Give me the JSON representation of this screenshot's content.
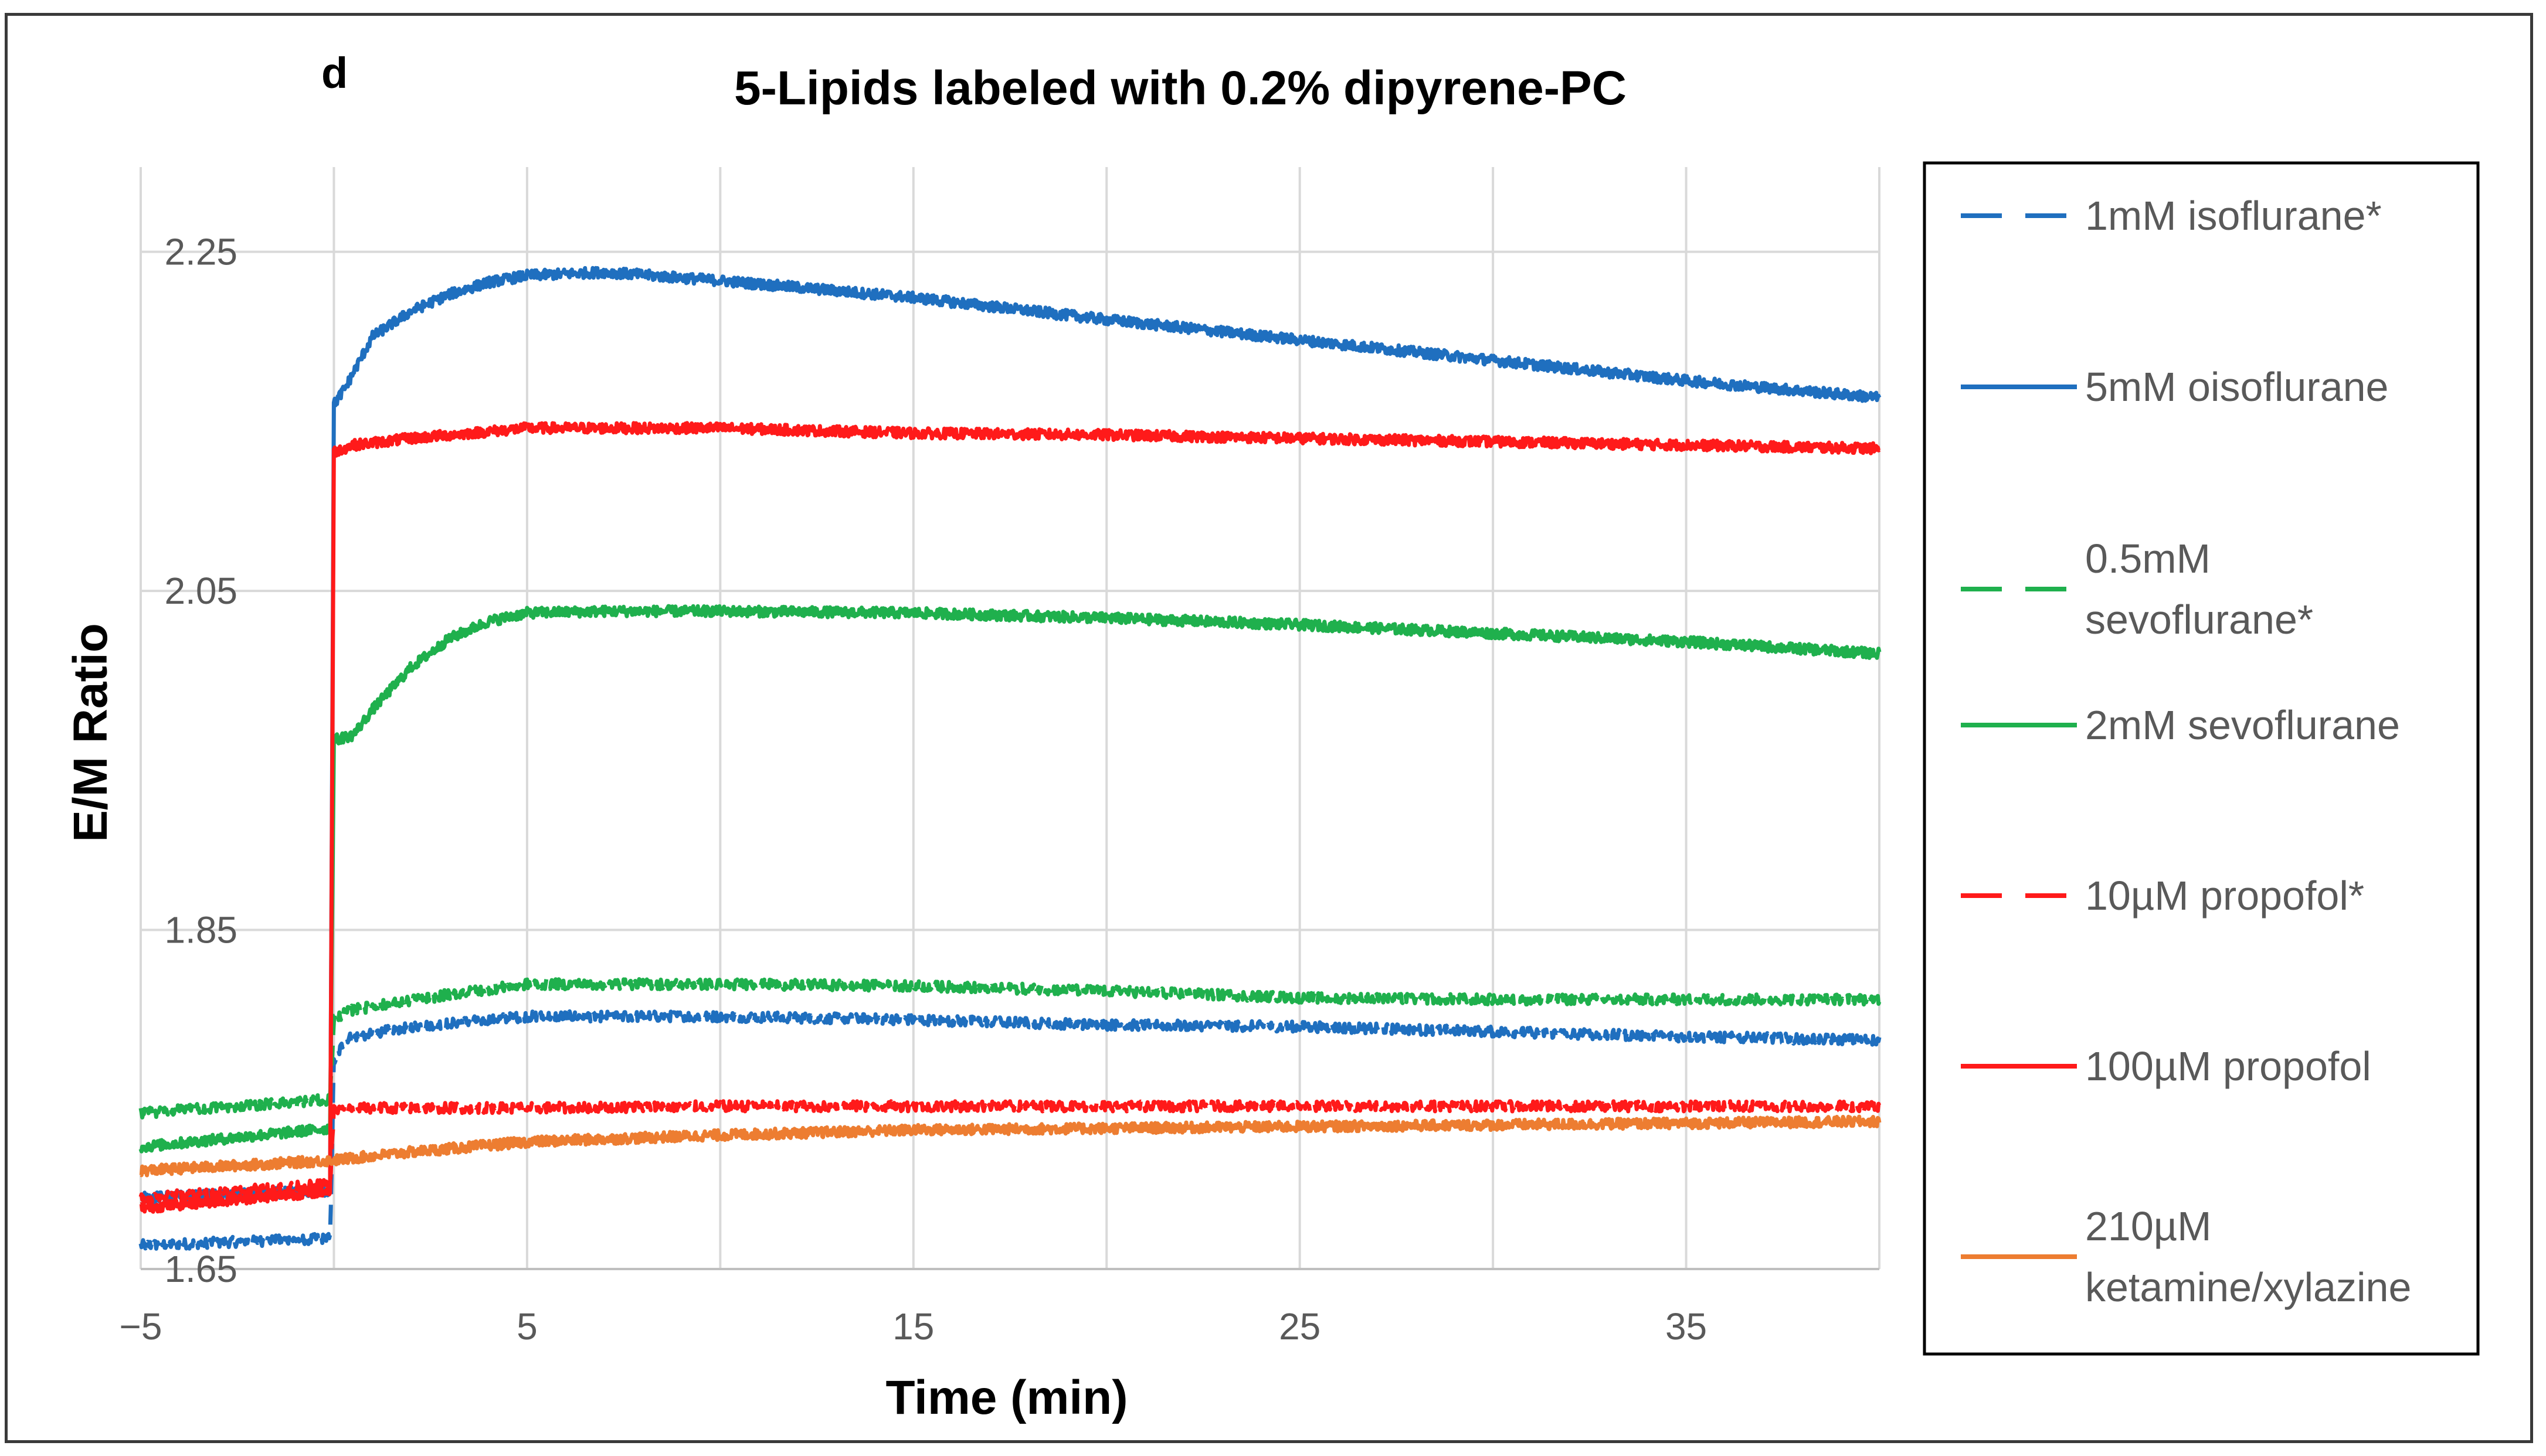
{
  "chart_data": {
    "type": "line",
    "panel": "d",
    "title": "5-Lipids labeled with 0.2% dipyrene-PC",
    "xlabel": "Time (min)",
    "ylabel": "E/M Ratio",
    "xlim": [
      -5,
      40
    ],
    "ylim": [
      1.65,
      2.3
    ],
    "xticks": [
      -5,
      5,
      15,
      25,
      35
    ],
    "yticks": [
      1.65,
      1.85,
      2.05,
      2.25
    ],
    "xtick_labels": [
      "−5",
      "5",
      "15",
      "25",
      "35"
    ],
    "ytick_labels": [
      "1.65",
      "1.85",
      "2.05",
      "2.25"
    ],
    "grid": true,
    "legend_position": "right",
    "series": [
      {
        "name": "1mM isoflurane*",
        "legend_lines": [
          "1mM isoflurane*"
        ],
        "color": "#1f6fbf",
        "dash": true,
        "x": [
          -5,
          -0.1,
          0,
          0.3,
          2,
          5,
          10,
          15,
          20,
          25,
          30,
          35,
          40
        ],
        "y": [
          1.664,
          1.668,
          1.772,
          1.786,
          1.793,
          1.799,
          1.799,
          1.797,
          1.794,
          1.793,
          1.79,
          1.787,
          1.785
        ]
      },
      {
        "name": "5mM oisoflurane",
        "legend_lines": [
          "5mM oisoflurane"
        ],
        "color": "#1f6fbf",
        "dash": false,
        "x": [
          -5,
          -0.1,
          0,
          0.3,
          1,
          2,
          3,
          4,
          5,
          7,
          10,
          15,
          20,
          25,
          30,
          35,
          40
        ],
        "y": [
          1.692,
          1.696,
          2.16,
          2.17,
          2.2,
          2.215,
          2.225,
          2.232,
          2.236,
          2.238,
          2.233,
          2.223,
          2.21,
          2.198,
          2.186,
          2.174,
          2.164
        ]
      },
      {
        "name": "0.5mM sevoflurane*",
        "legend_lines": [
          "0.5mM",
          "sevoflurane*"
        ],
        "color": "#1fb04d",
        "dash": true,
        "x": [
          -5,
          -0.1,
          0,
          0.5,
          3,
          5,
          10,
          15,
          20,
          25,
          30,
          35,
          40
        ],
        "y": [
          1.742,
          1.75,
          1.798,
          1.803,
          1.812,
          1.818,
          1.818,
          1.817,
          1.814,
          1.81,
          1.809,
          1.809,
          1.809
        ]
      },
      {
        "name": "2mM sevoflurane",
        "legend_lines": [
          "2mM sevoflurane"
        ],
        "color": "#1fb04d",
        "dash": false,
        "x": [
          -5,
          -0.1,
          0,
          0.5,
          1,
          2,
          3,
          4,
          5,
          7,
          10,
          15,
          20,
          25,
          30,
          35,
          40
        ],
        "y": [
          1.722,
          1.733,
          1.962,
          1.965,
          1.98,
          2.005,
          2.022,
          2.032,
          2.037,
          2.038,
          2.038,
          2.037,
          2.034,
          2.03,
          2.025,
          2.02,
          2.013
        ]
      },
      {
        "name": "10µM propofol*",
        "legend_lines": [
          "10µM propofol*"
        ],
        "color": "#ff1a1a",
        "dash": true,
        "x": [
          -5,
          -0.1,
          0,
          1,
          5,
          10,
          15,
          20,
          25,
          30,
          35,
          40
        ],
        "y": [
          1.692,
          1.7,
          1.744,
          1.745,
          1.745,
          1.746,
          1.746,
          1.746,
          1.746,
          1.746,
          1.746,
          1.746
        ]
      },
      {
        "name": "100µM propofol",
        "legend_lines": [
          "100µM propofol"
        ],
        "color": "#ff1a1a",
        "dash": false,
        "x": [
          -5,
          -0.1,
          0,
          0.5,
          2,
          5,
          10,
          15,
          20,
          25,
          30,
          35,
          40
        ],
        "y": [
          1.686,
          1.696,
          2.132,
          2.136,
          2.14,
          2.146,
          2.146,
          2.143,
          2.142,
          2.14,
          2.138,
          2.136,
          2.134
        ]
      },
      {
        "name": "210µM ketamine/xylazine",
        "legend_lines": [
          "210µM",
          "ketamine/xylazine"
        ],
        "color": "#ed7d31",
        "dash": false,
        "x": [
          -5,
          -0.1,
          2,
          5,
          10,
          15,
          20,
          25,
          30,
          35,
          40
        ],
        "y": [
          1.708,
          1.714,
          1.719,
          1.725,
          1.729,
          1.732,
          1.733,
          1.734,
          1.735,
          1.736,
          1.737
        ]
      }
    ]
  }
}
